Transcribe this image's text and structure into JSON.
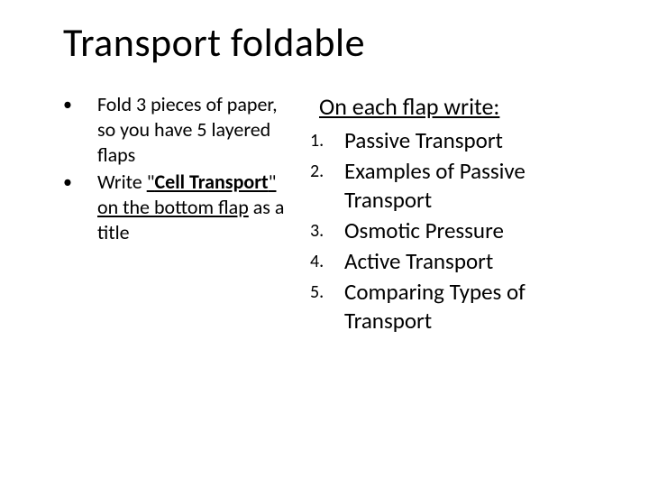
{
  "title": "Transport foldable",
  "left_bullets": [
    {
      "marker": "•",
      "text": "Fold 3 pieces of paper,  so you have 5 layered flaps"
    },
    {
      "marker": "•",
      "html": "Write <u>\"<b>Cell Transport</b>\" on the bottom flap</u> as a title"
    }
  ],
  "right_heading": "On each flap write:",
  "right_items": [
    {
      "n": "1.",
      "text": "Passive Transport"
    },
    {
      "n": "2.",
      "text": "Examples of Passive Transport"
    },
    {
      "n": "3.",
      "text": "Osmotic Pressure"
    },
    {
      "n": "4.",
      "text": "Active Transport"
    },
    {
      "n": "5.",
      "text": "Comparing Types of Transport"
    }
  ],
  "colors": {
    "background": "#ffffff",
    "text": "#000000"
  },
  "fonts": {
    "title_size_pt": 44,
    "body_size_pt": 22,
    "numbered_size_pt": 25
  }
}
